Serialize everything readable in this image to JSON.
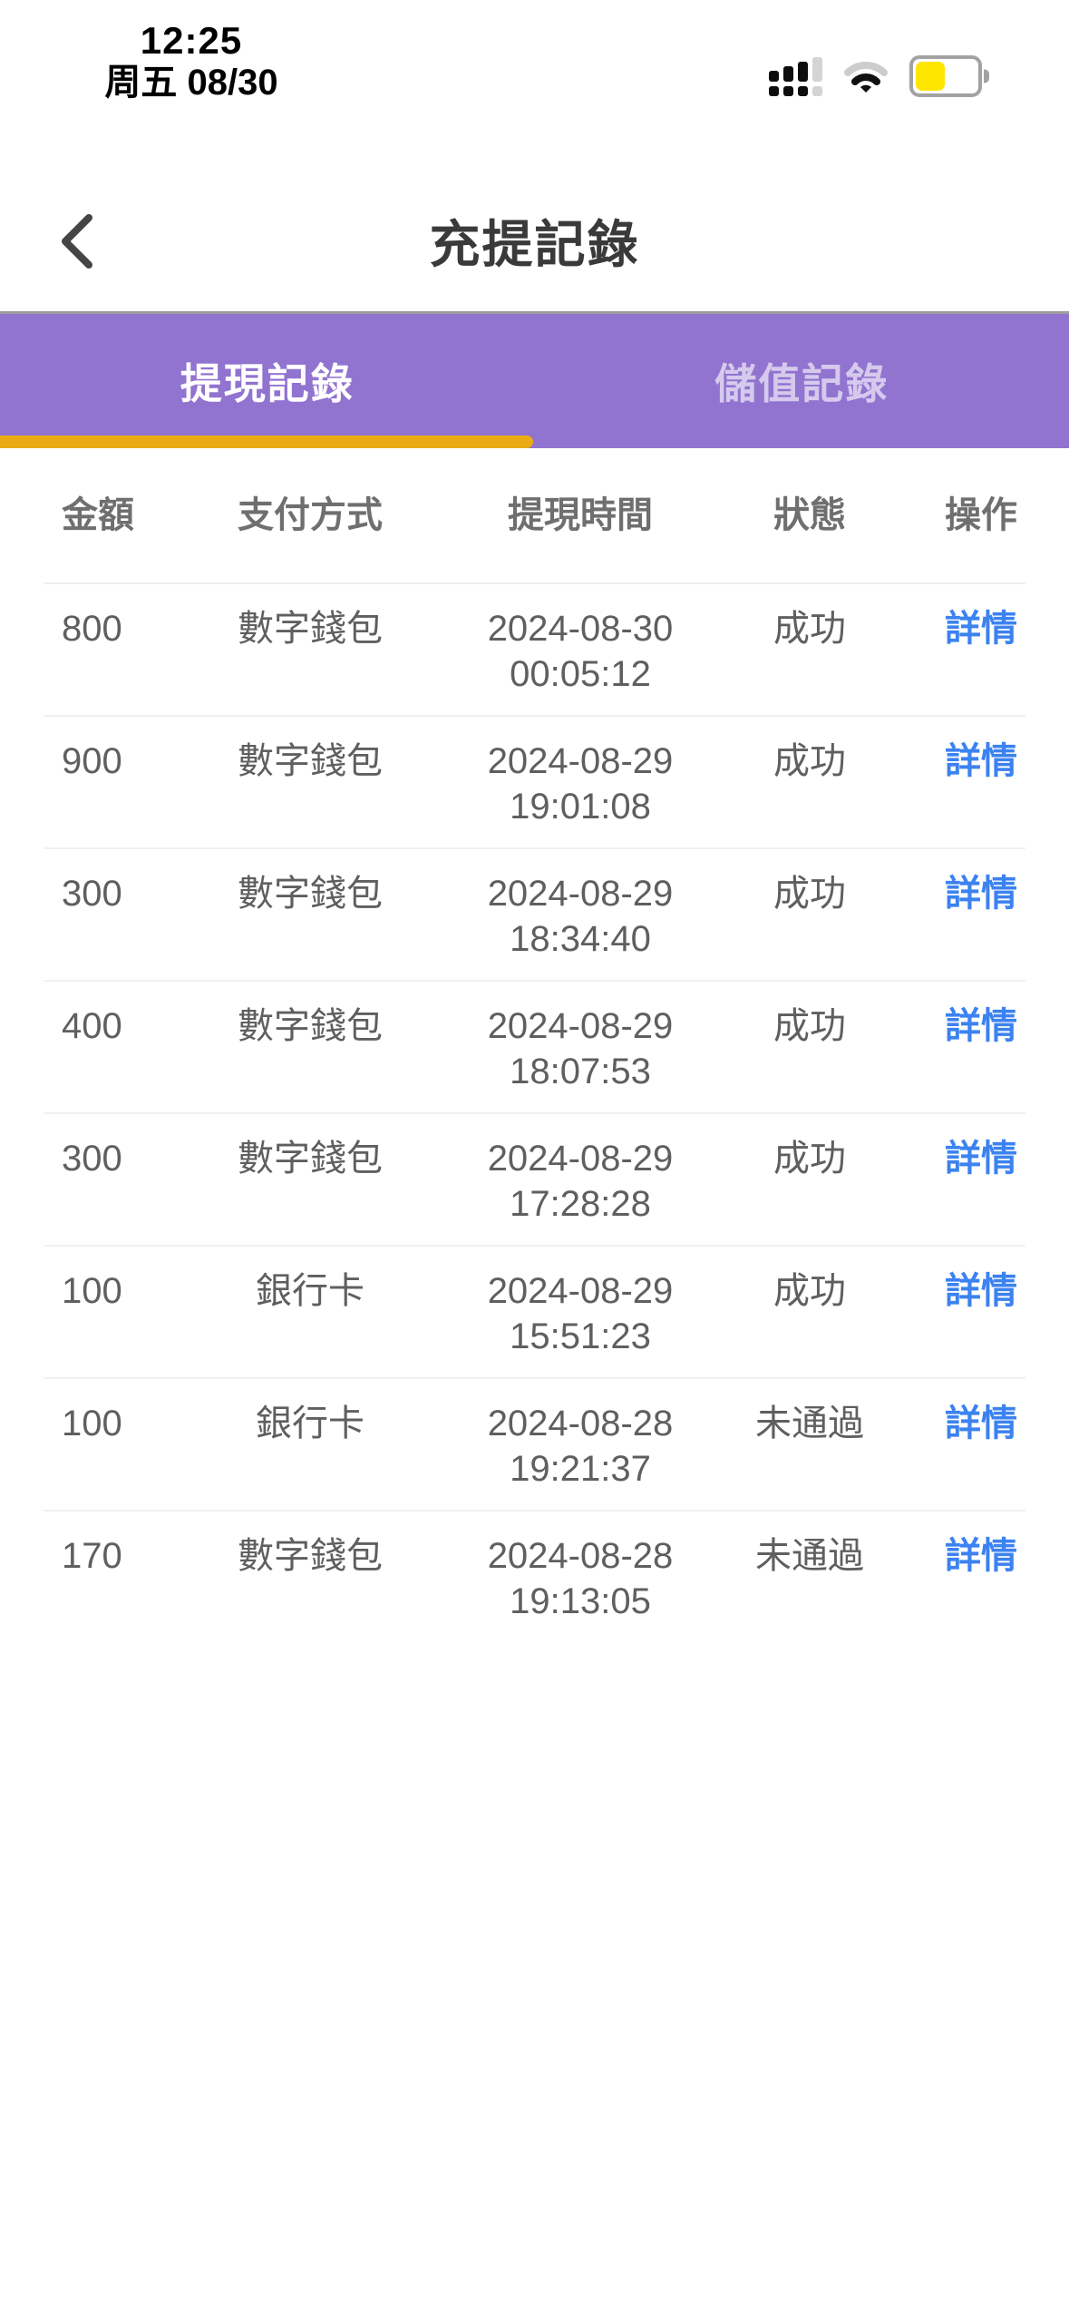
{
  "status_bar": {
    "time": "12:25",
    "date": "周五 08/30",
    "battery_fill_ratio": 0.45,
    "icons": [
      "cellular-signal-icon",
      "wifi-icon",
      "battery-icon"
    ]
  },
  "navbar": {
    "title": "充提記錄",
    "back_icon": "back-chevron-icon"
  },
  "tabs": [
    {
      "label": "提現記錄",
      "active": true
    },
    {
      "label": "儲值記錄",
      "active": false
    }
  ],
  "table": {
    "headers": [
      "金額",
      "支付方式",
      "提現時間",
      "狀態",
      "操作"
    ],
    "rows": [
      {
        "amount": "800",
        "method": "數字錢包",
        "date": "2024-08-30",
        "time": "00:05:12",
        "status": "成功",
        "action": "詳情"
      },
      {
        "amount": "900",
        "method": "數字錢包",
        "date": "2024-08-29",
        "time": "19:01:08",
        "status": "成功",
        "action": "詳情"
      },
      {
        "amount": "300",
        "method": "數字錢包",
        "date": "2024-08-29",
        "time": "18:34:40",
        "status": "成功",
        "action": "詳情"
      },
      {
        "amount": "400",
        "method": "數字錢包",
        "date": "2024-08-29",
        "time": "18:07:53",
        "status": "成功",
        "action": "詳情"
      },
      {
        "amount": "300",
        "method": "數字錢包",
        "date": "2024-08-29",
        "time": "17:28:28",
        "status": "成功",
        "action": "詳情"
      },
      {
        "amount": "100",
        "method": "銀行卡",
        "date": "2024-08-29",
        "time": "15:51:23",
        "status": "成功",
        "action": "詳情"
      },
      {
        "amount": "100",
        "method": "銀行卡",
        "date": "2024-08-28",
        "time": "19:21:37",
        "status": "未通過",
        "action": "詳情"
      },
      {
        "amount": "170",
        "method": "數字錢包",
        "date": "2024-08-28",
        "time": "19:13:05",
        "status": "未通過",
        "action": "詳情"
      }
    ]
  },
  "colors": {
    "tab_purple": "#9173D0",
    "tab_underline_yellow": "#E9AC15",
    "link_blue": "#3C82F0",
    "battery_yellow": "#FFE600",
    "hairline_gray": "#9D9D9D"
  }
}
